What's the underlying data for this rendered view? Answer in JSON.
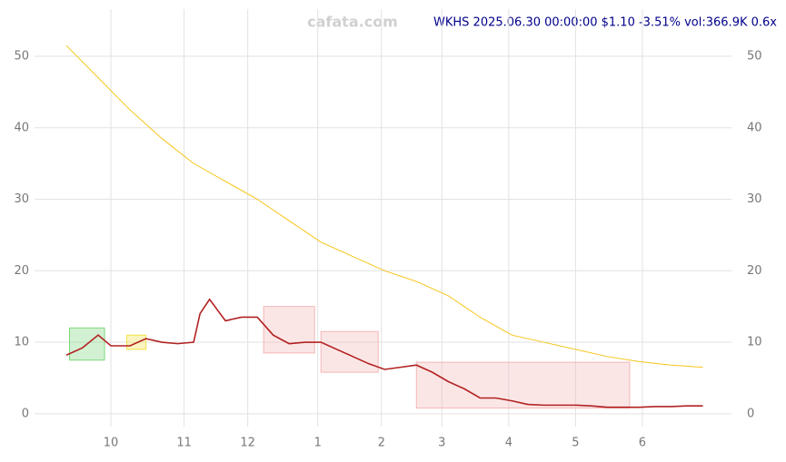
{
  "chart_data": {
    "type": "line",
    "title": "WKHS 2025.06.30 00:00:00 $1.10 -3.51% vol:366.9K 0.6x",
    "watermark": "cafata.com",
    "xlim": [
      -10,
      209
    ],
    "ylim": [
      -1.8,
      56.6
    ],
    "xticks": [
      {
        "value": 14,
        "label": "10"
      },
      {
        "value": 37,
        "label": "11"
      },
      {
        "value": 57,
        "label": "12"
      },
      {
        "value": 79,
        "label": "1"
      },
      {
        "value": 99,
        "label": "2"
      },
      {
        "value": 118,
        "label": "3"
      },
      {
        "value": 139,
        "label": "4"
      },
      {
        "value": 160,
        "label": "5"
      },
      {
        "value": 181,
        "label": "6"
      }
    ],
    "yticks": [
      0,
      10,
      20,
      30,
      40,
      50
    ],
    "grid": true,
    "series": [
      {
        "color": "#b22222",
        "x": [
          0,
          5,
          10,
          14,
          20,
          25,
          30,
          35,
          40,
          42,
          45,
          50,
          55,
          60,
          65,
          70,
          75,
          80,
          85,
          90,
          95,
          100,
          105,
          110,
          115,
          120,
          125,
          130,
          135,
          140,
          145,
          150,
          155,
          160,
          165,
          170,
          175,
          180,
          185,
          190,
          195,
          200
        ],
        "values": [
          8.2,
          9.2,
          11,
          9.5,
          9.5,
          10.5,
          10,
          9.8,
          10,
          14,
          16,
          13,
          13.5,
          13.5,
          11,
          9.8,
          10,
          10,
          9,
          8,
          7,
          6.2,
          6.5,
          6.8,
          5.8,
          4.5,
          3.5,
          2.2,
          2.2,
          1.8,
          1.3,
          1.2,
          1.2,
          1.2,
          1.1,
          0.9,
          0.9,
          0.9,
          1,
          1,
          1.1,
          1.1
        ]
      },
      {
        "color": "#f5c518",
        "x": [
          0,
          10,
          20,
          30,
          40,
          50,
          60,
          70,
          80,
          90,
          100,
          110,
          120,
          130,
          140,
          150,
          160,
          170,
          180,
          190,
          200
        ],
        "values": [
          51.5,
          47,
          42.5,
          38.5,
          35,
          32.5,
          30,
          27,
          24,
          22,
          20,
          18.5,
          16.5,
          13.5,
          11,
          10,
          9,
          8,
          7.3,
          6.8,
          6.5
        ]
      }
    ],
    "zones": [
      {
        "x0": 1,
        "x1": 12,
        "y0": 7.5,
        "y1": 12,
        "color": "#7ed87e"
      },
      {
        "x0": 19,
        "x1": 25,
        "y0": 9,
        "y1": 11,
        "color": "#f2e14a"
      },
      {
        "x0": 62,
        "x1": 78,
        "y0": 8.5,
        "y1": 15,
        "color": "#f4b7b7"
      },
      {
        "x0": 80,
        "x1": 98,
        "y0": 5.8,
        "y1": 11.5,
        "color": "#f4b7b7"
      },
      {
        "x0": 110,
        "x1": 177,
        "y0": 0.8,
        "y1": 7.2,
        "color": "#f4b7b7"
      }
    ]
  }
}
